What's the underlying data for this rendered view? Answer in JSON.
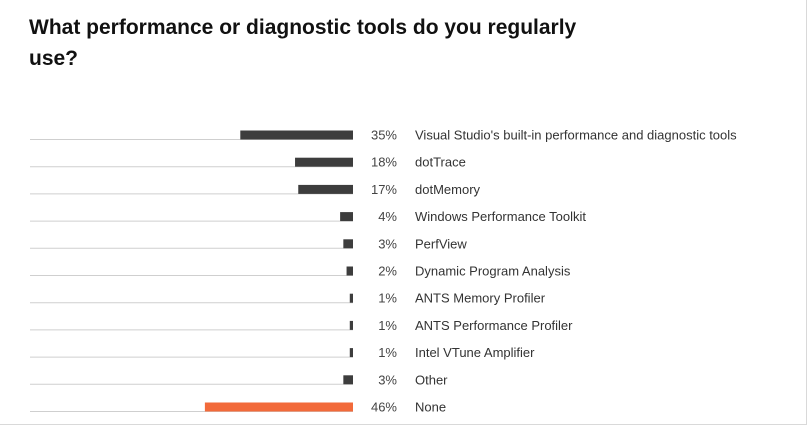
{
  "colors": {
    "bar": "#3d3d3d",
    "highlight": "#f26a3a",
    "track": "#cfcfcf",
    "text": "#333333"
  },
  "chart_data": {
    "type": "bar",
    "orientation": "horizontal",
    "title": "What performance or diagnostic tools do you regularly use?",
    "value_format": "percent",
    "xlim": [
      0,
      100
    ],
    "grid": false,
    "legend": "none",
    "categories": [
      "Visual Studio's built-in performance and diagnostic tools",
      "dotTrace",
      "dotMemory",
      "Windows Performance Toolkit",
      "PerfView",
      "Dynamic Program Analysis",
      "ANTS Memory Profiler",
      "ANTS Performance Profiler",
      "Intel VTune Amplifier",
      "Other",
      "None"
    ],
    "values": [
      35,
      18,
      17,
      4,
      3,
      2,
      1,
      1,
      1,
      3,
      46
    ],
    "value_labels": [
      "35%",
      "18%",
      "17%",
      "4%",
      "3%",
      "2%",
      "1%",
      "1%",
      "1%",
      "3%",
      "46%"
    ],
    "highlighted": [
      "None"
    ]
  }
}
